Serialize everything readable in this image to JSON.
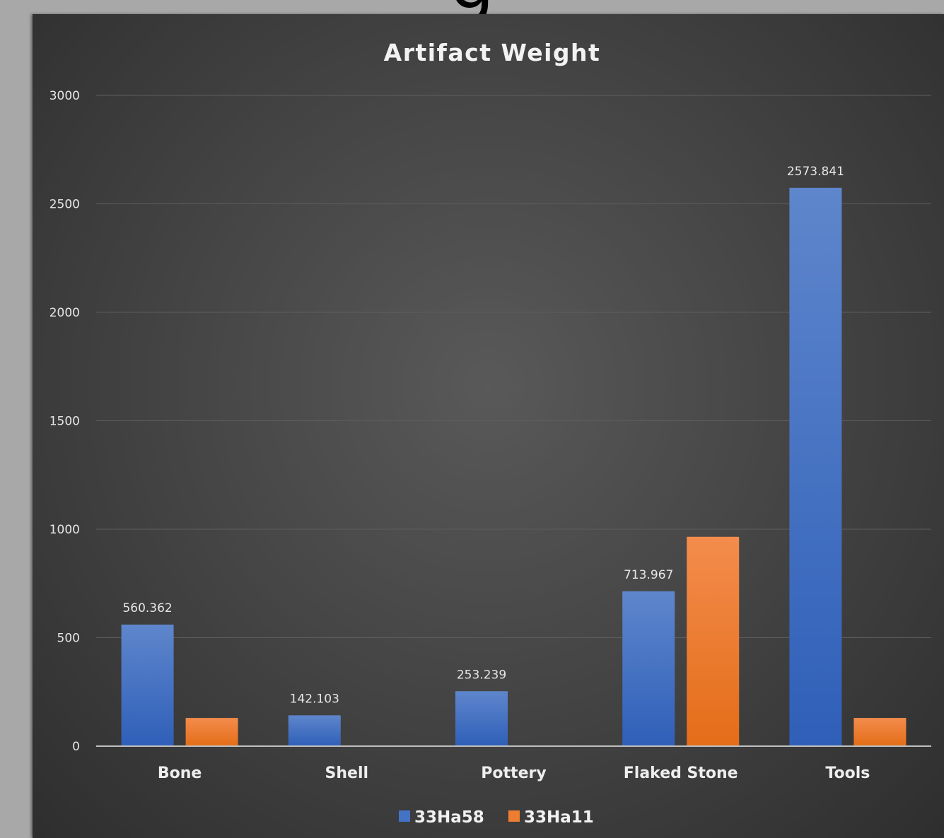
{
  "slide_title_fragment": "g",
  "colors": {
    "series1": "#4472C4",
    "series2": "#ED7D31",
    "gridline": "#5e5e5e",
    "axis": "#bfbfbf"
  },
  "chart_data": {
    "type": "bar",
    "title": "Artifact Weight",
    "xlabel": "",
    "ylabel": "",
    "categories": [
      "Bone",
      "Shell",
      "Pottery",
      "Flaked Stone",
      "Tools"
    ],
    "ylim": [
      0,
      3000
    ],
    "yticks": [
      0,
      500,
      1000,
      1500,
      2000,
      2500,
      3000
    ],
    "grid": true,
    "legend": "bottom",
    "series": [
      {
        "name": "33Ha58",
        "values": [
          560.362,
          142.103,
          253.239,
          713.967,
          2573.841
        ],
        "labels": [
          "560.362",
          "142.103",
          "253.239",
          "713.967",
          "2573.841"
        ]
      },
      {
        "name": "33Ha11",
        "values": [
          130,
          3,
          0,
          965,
          130
        ]
      }
    ]
  }
}
